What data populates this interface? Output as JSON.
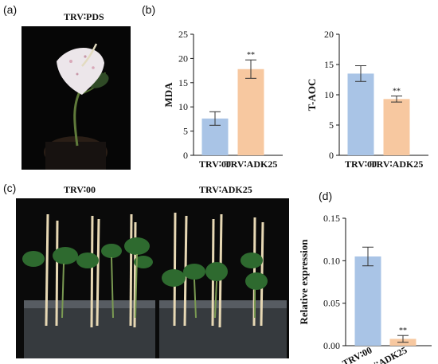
{
  "panels": {
    "a": {
      "letter": "(a)",
      "title": "TRV∶PDS"
    },
    "b": {
      "letter": "(b)"
    },
    "c": {
      "letter": "(c)",
      "left_label": "TRV∶00",
      "right_label": "TRV∶ADK25"
    },
    "d": {
      "letter": "(d)"
    }
  },
  "colors": {
    "control": "#a9c4e6",
    "treatment": "#f7c8a0",
    "axis": "#111111"
  },
  "chart_data": [
    {
      "id": "mda",
      "type": "bar",
      "categories": [
        "TRV∶00",
        "TRV∶ADK25"
      ],
      "values": [
        7.6,
        17.8
      ],
      "errors": [
        1.4,
        1.9
      ],
      "annotations": [
        "",
        "**"
      ],
      "ylabel": "MDA",
      "ylim": [
        0,
        25
      ],
      "yticks": [
        0,
        5,
        10,
        15,
        20,
        25
      ],
      "ytick_labels": [
        "0",
        "5",
        "10",
        "15",
        "20",
        "25"
      ]
    },
    {
      "id": "taoc",
      "type": "bar",
      "categories": [
        "TRV∶00",
        "TRV∶ADK25"
      ],
      "values": [
        13.5,
        9.3
      ],
      "errors": [
        1.3,
        0.5
      ],
      "annotations": [
        "",
        "**"
      ],
      "ylabel": "T-AOC",
      "ylim": [
        0,
        20
      ],
      "yticks": [
        0,
        5,
        10,
        15,
        20
      ],
      "ytick_labels": [
        "0",
        "5",
        "10",
        "15",
        "20"
      ]
    },
    {
      "id": "rel",
      "type": "bar",
      "categories": [
        "TRV∶00",
        "TRV∶ADK25"
      ],
      "values": [
        0.105,
        0.008
      ],
      "errors": [
        0.011,
        0.004
      ],
      "annotations": [
        "",
        "**"
      ],
      "ylabel": "Relative expression",
      "ylim": [
        0,
        0.15
      ],
      "yticks": [
        0,
        0.05,
        0.1,
        0.15
      ],
      "ytick_labels": [
        "0.00",
        "0.05",
        "0.10",
        "0.15"
      ]
    }
  ]
}
